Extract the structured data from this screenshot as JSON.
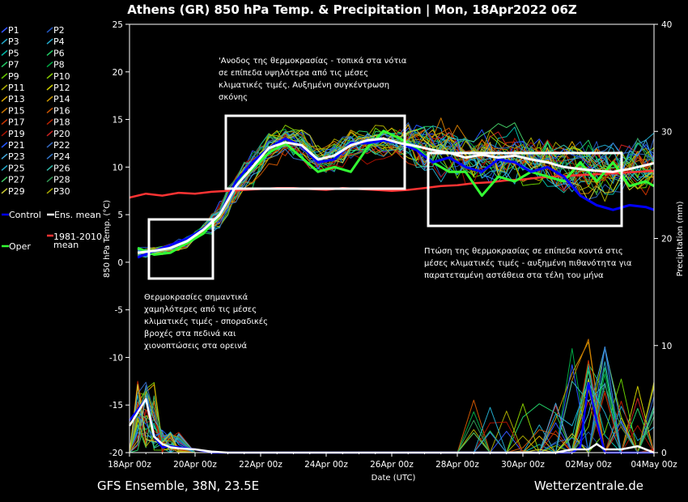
{
  "chart_data": {
    "type": "line",
    "title": "Athens  (GR)  850 hPa Temp. & Precipitation | Mon, 18Apr2022 06Z",
    "xlabel": "Date (UTC)",
    "ylabel_left": "850 hPa Temp. (°C)",
    "ylabel_right": "Precipitation (mm)",
    "ylim_left": [
      -20,
      25
    ],
    "ylim_right": [
      0,
      40
    ],
    "x_range_hours": [
      0,
      384
    ],
    "grid": false,
    "legend_placement": "left",
    "xticks": [
      {
        "h": 0,
        "label": "18Apr 00z"
      },
      {
        "h": 48,
        "label": "20Apr 00z"
      },
      {
        "h": 96,
        "label": "22Apr 00z"
      },
      {
        "h": 144,
        "label": "24Apr 00z"
      },
      {
        "h": 192,
        "label": "26Apr 00z"
      },
      {
        "h": 240,
        "label": "28Apr 00z"
      },
      {
        "h": 288,
        "label": "30Apr 00z"
      },
      {
        "h": 336,
        "label": "02May 00z"
      },
      {
        "h": 384,
        "label": "04May 00z"
      }
    ],
    "yticks_left": [
      "25",
      "20",
      "15",
      "10",
      "5",
      "0",
      "-5",
      "-10",
      "-15",
      "-20"
    ],
    "yticks_right": [
      "40",
      "30",
      "20",
      "10",
      "0"
    ],
    "ens_mean_temp": {
      "x": [
        6,
        18,
        30,
        42,
        54,
        66,
        78,
        90,
        102,
        114,
        126,
        138,
        150,
        162,
        174,
        186,
        198,
        210,
        222,
        234,
        246,
        258,
        270,
        282,
        294,
        306,
        318,
        330,
        342,
        354,
        366,
        378,
        384
      ],
      "y": [
        1,
        1.2,
        1.5,
        2.2,
        3.4,
        5,
        8,
        10,
        12,
        12.6,
        12.3,
        10.8,
        11.2,
        12.3,
        12.8,
        13,
        12.5,
        12.2,
        11.8,
        11.5,
        11,
        11.3,
        11,
        11.2,
        10.8,
        10.5,
        10,
        9.8,
        9.6,
        9.5,
        9.8,
        10.2,
        10.4
      ]
    },
    "control_temp": {
      "x": [
        6,
        18,
        30,
        42,
        54,
        66,
        78,
        90,
        102,
        114,
        126,
        138,
        150,
        162,
        174,
        186,
        198,
        210,
        222,
        234,
        246,
        258,
        270,
        282,
        294,
        306,
        318,
        330,
        342,
        354,
        366,
        378,
        384
      ],
      "y": [
        0.5,
        1.2,
        1.8,
        2.5,
        3.5,
        5,
        8.5,
        10.5,
        12,
        13,
        12.2,
        10.5,
        10.8,
        12.5,
        12.5,
        12.8,
        12.5,
        11.8,
        10.5,
        11,
        10,
        9.5,
        10.8,
        10.5,
        9.5,
        10,
        9,
        7,
        6,
        5.5,
        6,
        5.8,
        5.5
      ]
    },
    "oper_temp": {
      "x": [
        6,
        18,
        30,
        42,
        54,
        66,
        78,
        90,
        102,
        114,
        126,
        138,
        150,
        162,
        174,
        186,
        198,
        210,
        222,
        234,
        246,
        258,
        270,
        282,
        294,
        306,
        318,
        330,
        342,
        354,
        366,
        378,
        384
      ],
      "y": [
        1.5,
        0.8,
        1,
        2,
        3,
        5,
        8.5,
        9.8,
        11.5,
        12.5,
        11,
        9.5,
        10,
        9.5,
        12,
        13.8,
        13,
        12,
        10.5,
        9.5,
        9.5,
        7,
        9,
        8.5,
        9.5,
        9,
        8.5,
        10.5,
        8.5,
        10.5,
        8,
        8.5,
        8
      ]
    },
    "clim_mean_temp": {
      "x": [
        0,
        12,
        24,
        36,
        48,
        60,
        72,
        84,
        96,
        108,
        120,
        132,
        144,
        156,
        168,
        180,
        192,
        204,
        216,
        228,
        240,
        252,
        264,
        276,
        288,
        300,
        312,
        324,
        336,
        348,
        360,
        372,
        384
      ],
      "y": [
        6.8,
        7.2,
        7,
        7.3,
        7.2,
        7.4,
        7.5,
        7.6,
        7.7,
        7.8,
        7.8,
        7.7,
        7.6,
        7.8,
        7.7,
        7.6,
        7.5,
        7.6,
        7.8,
        8,
        8.1,
        8.3,
        8.4,
        8.6,
        8.7,
        8.9,
        9,
        9.1,
        9.2,
        9.3,
        9.4,
        9.5,
        9.6
      ]
    },
    "ens_mean_precip": {
      "x": [
        0,
        12,
        18,
        24,
        30,
        36,
        48,
        60,
        72,
        96,
        144,
        240,
        312,
        324,
        336,
        342,
        348,
        360,
        372,
        384
      ],
      "y": [
        2.5,
        5,
        1.5,
        0.8,
        0.5,
        0.4,
        0.3,
        0.1,
        0,
        0,
        0,
        0,
        0,
        0.3,
        0.3,
        0.8,
        0.3,
        0.3,
        0.6,
        0
      ]
    },
    "control_precip": {
      "x": [
        0,
        12,
        18,
        24,
        30,
        48,
        60,
        72,
        96,
        144,
        240,
        312,
        324,
        330,
        336,
        342,
        348,
        360,
        384
      ],
      "y": [
        3,
        5,
        1.5,
        0.5,
        0.6,
        0.3,
        0,
        0,
        0,
        0,
        0,
        0,
        0,
        0.5,
        6.5,
        3,
        0,
        0,
        0
      ]
    },
    "members": [
      "P1",
      "P2",
      "P3",
      "P4",
      "P5",
      "P6",
      "P7",
      "P8",
      "P9",
      "P10",
      "P11",
      "P12",
      "P13",
      "P14",
      "P15",
      "P16",
      "P17",
      "P18",
      "P19",
      "P20",
      "P21",
      "P22",
      "P23",
      "P24",
      "P25",
      "P26",
      "P27",
      "P28",
      "P29",
      "P30"
    ],
    "member_colors": [
      "#3355ff",
      "#2255bb",
      "#22aacc",
      "#22aacc",
      "#00bbaa",
      "#22cc66",
      "#22cc66",
      "#00aa44",
      "#66cc00",
      "#88cc00",
      "#aaaa00",
      "#cccc00",
      "#ddaa00",
      "#cc9900",
      "#cc7700",
      "#cc5500",
      "#cc3300",
      "#bb2200",
      "#aa1100",
      "#cc2222",
      "#2255ff",
      "#3366bb",
      "#44aadd",
      "#3377cc",
      "#22aacc",
      "#33bbaa",
      "#44cc66",
      "#339955",
      "#cccc33",
      "#aaaa00"
    ]
  },
  "legend": {
    "control": "Control",
    "ens_mean": "Ens. mean",
    "oper": "Oper",
    "clim_line1": "1981-2010",
    "clim_line2": "mean",
    "colors": {
      "control": "#0000ff",
      "ens_mean": "#ffffff",
      "oper": "#33ff33",
      "clim": "#ff3333"
    }
  },
  "annotations": {
    "a1": [
      "Θερμοκρασίες σημαντικά",
      "χαμηλότερες από τις μέσες",
      "κλιματικές τιμές - σποραδικές",
      "βροχές στα πεδινά και",
      "χιονοπτώσεις στα ορεινά"
    ],
    "a2": [
      "'Ανοδος της θερμοκρασίας - τοπικά στα νότια",
      "σε επίπεδα υψηλότερα από τις μέσες",
      "κλιματικές τιμές. Αυξημένη συγκέντρωση",
      "σκόνης"
    ],
    "a3": [
      "Πτώση της θερμοκρασίας σε επίπεδα κοντά στις",
      "μέσες κλιματικές τιμές - αυξημένη πιθανότητα για",
      "παρατεταμένη αστάθεια στα τέλη του μήνα"
    ]
  },
  "footer": {
    "left": "GFS Ensemble, 38N, 23.5E",
    "right": "Wetterzentrale.de"
  }
}
